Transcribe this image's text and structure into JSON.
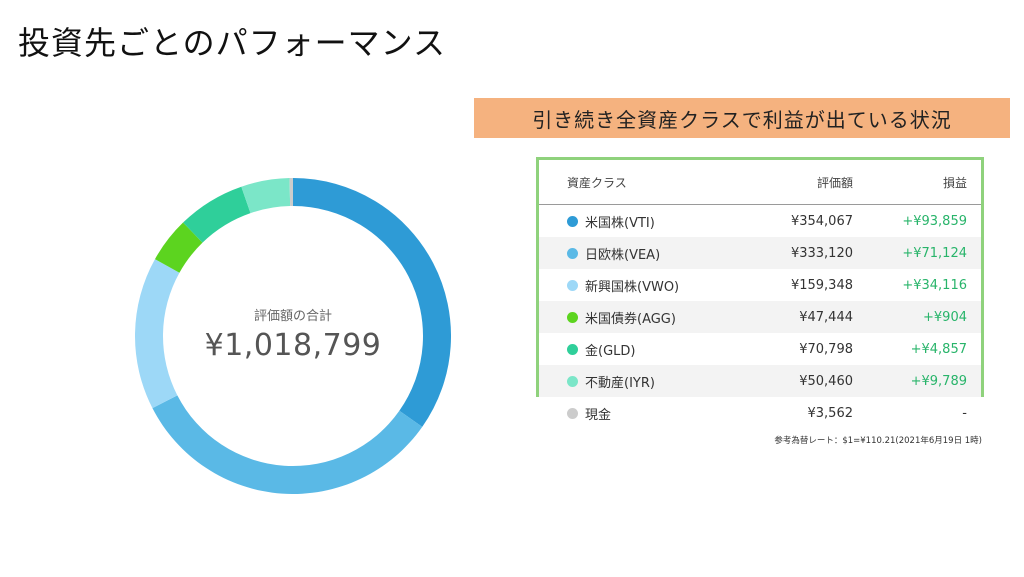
{
  "page": {
    "title": "投資先ごとのパフォーマンス"
  },
  "callout": {
    "text": "引き続き全資産クラスで利益が出ている状況"
  },
  "donut": {
    "center_label": "評価額の合計",
    "center_value": "¥1,018,799"
  },
  "table": {
    "headers": {
      "name": "資産クラス",
      "value": "評価額",
      "gain": "損益"
    },
    "rows": [
      {
        "name": "米国株(VTI)",
        "value": "¥354,067",
        "gain": "+¥93,859",
        "color": "#2e9bd6"
      },
      {
        "name": "日欧株(VEA)",
        "value": "¥333,120",
        "gain": "+¥71,124",
        "color": "#5ab9e6"
      },
      {
        "name": "新興国株(VWO)",
        "value": "¥159,348",
        "gain": "+¥34,116",
        "color": "#9dd8f7"
      },
      {
        "name": "米国債券(AGG)",
        "value": "¥47,444",
        "gain": "+¥904",
        "color": "#5cd41f"
      },
      {
        "name": "金(GLD)",
        "value": "¥70,798",
        "gain": "+¥4,857",
        "color": "#2fcf9a"
      },
      {
        "name": "不動産(IYR)",
        "value": "¥50,460",
        "gain": "+¥9,789",
        "color": "#7be6c8"
      }
    ],
    "cash": {
      "name": "現金",
      "value": "¥3,562",
      "gain": "-",
      "color": "#cccccc"
    },
    "footnote": "参考為替レート：$1=¥110.21(2021年6月19日 1時)"
  },
  "chart_data": {
    "type": "pie",
    "variant": "donut",
    "categories": [
      "米国株(VTI)",
      "日欧株(VEA)",
      "新興国株(VWO)",
      "米国債券(AGG)",
      "金(GLD)",
      "不動産(IYR)",
      "現金"
    ],
    "values": [
      354067,
      333120,
      159348,
      47444,
      70798,
      50460,
      3562
    ],
    "colors": [
      "#2e9bd6",
      "#5ab9e6",
      "#9dd8f7",
      "#5cd41f",
      "#2fcf9a",
      "#7be6c8",
      "#cccccc"
    ],
    "total": 1018799
  }
}
